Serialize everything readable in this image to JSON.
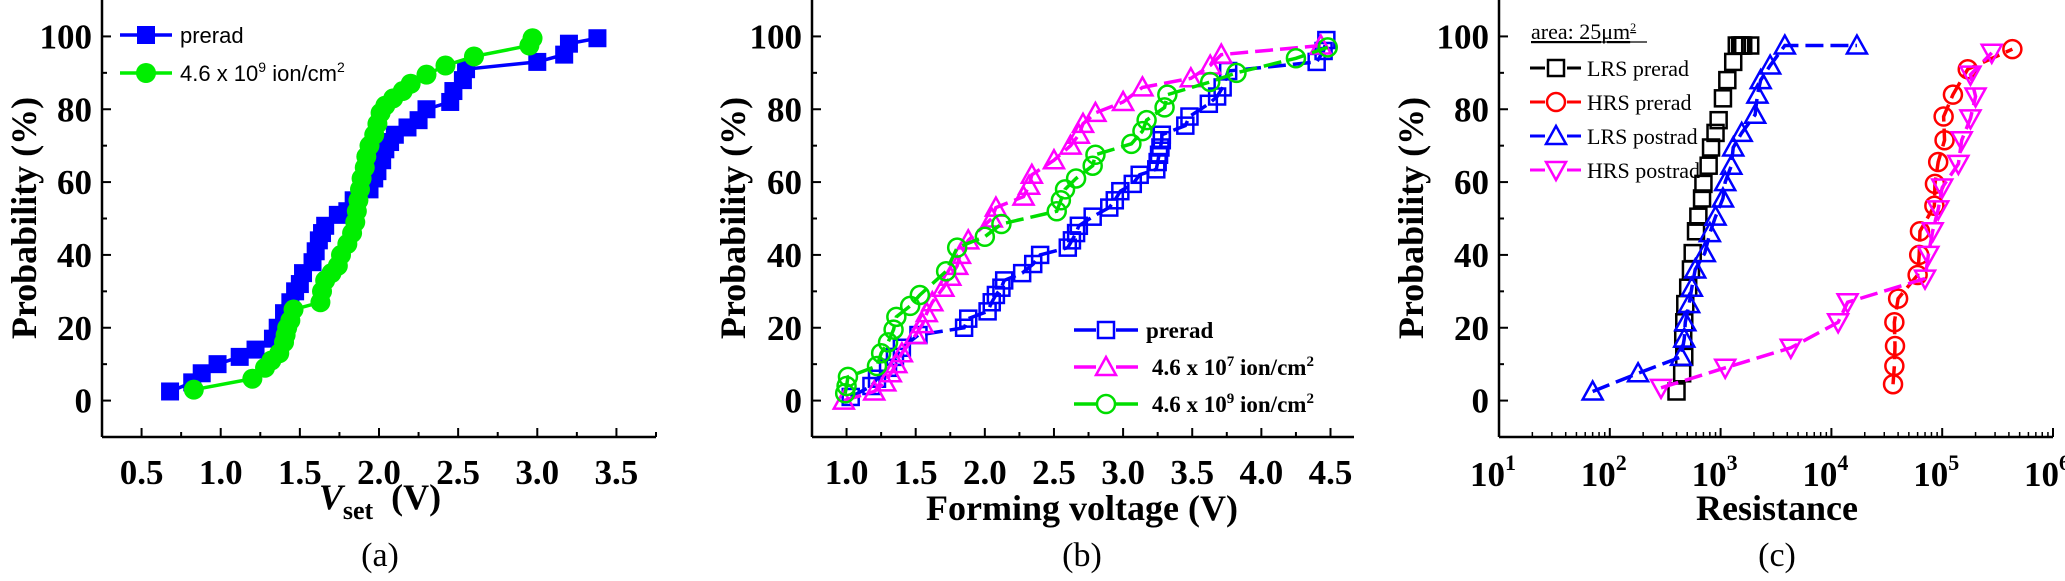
{
  "chart_data": [
    {
      "id": "a",
      "type": "line",
      "panel_label": "(a)",
      "title": "",
      "xlabel": "V_set (V)",
      "xlabel_main": "V",
      "xlabel_sub": "set",
      "xlabel_unit": "(V)",
      "ylabel": "Probability (%)",
      "xscale": "linear",
      "xlim": [
        0.25,
        3.75
      ],
      "ylim": [
        -10,
        110
      ],
      "xticks": [
        0.5,
        1.0,
        1.5,
        2.0,
        2.5,
        3.0,
        3.5
      ],
      "xtick_labels": [
        "0.5",
        "1.0",
        "1.5",
        "2.0",
        "2.5",
        "3.0",
        "3.5"
      ],
      "yticks": [
        0,
        20,
        40,
        60,
        80,
        100
      ],
      "ytick_labels": [
        "0",
        "20",
        "40",
        "60",
        "80",
        "100"
      ],
      "grid": false,
      "legend_position": "top-left",
      "series": [
        {
          "name": "prerad",
          "legend_text": "prerad",
          "legend_sup": "",
          "legend_tail": "",
          "color": "#0000ff",
          "marker": "filled-square",
          "x": [
            0.68,
            0.82,
            0.88,
            0.98,
            1.12,
            1.22,
            1.33,
            1.36,
            1.4,
            1.44,
            1.47,
            1.5,
            1.52,
            1.58,
            1.6,
            1.62,
            1.64,
            1.66,
            1.74,
            1.8,
            1.84,
            1.94,
            1.97,
            1.99,
            2.02,
            2.04,
            2.07,
            2.1,
            2.18,
            2.25,
            2.3,
            2.45,
            2.47,
            2.53,
            2.55,
            3.0,
            3.17,
            3.2,
            3.38
          ],
          "y": [
            2.5,
            5,
            7.5,
            10,
            12,
            14,
            17,
            20,
            24,
            27,
            30,
            32,
            35,
            38,
            41,
            44,
            46,
            48,
            51,
            52,
            55,
            58,
            61,
            63,
            66,
            69,
            71,
            73,
            75,
            77,
            80,
            82,
            85,
            88,
            91,
            93,
            95,
            98,
            99.5
          ]
        },
        {
          "name": "4.6 x 10^9 ion/cm^2",
          "legend_text": "4.6 x 10",
          "legend_sup": "9",
          "legend_tail": " ion/cm",
          "legend_sup2": "2",
          "color": "#00ee00",
          "marker": "filled-circle",
          "x": [
            0.83,
            1.2,
            1.28,
            1.32,
            1.37,
            1.4,
            1.41,
            1.42,
            1.44,
            1.46,
            1.63,
            1.64,
            1.66,
            1.7,
            1.74,
            1.76,
            1.8,
            1.83,
            1.85,
            1.86,
            1.87,
            1.88,
            1.89,
            1.91,
            1.92,
            1.94,
            1.97,
            1.99,
            2.01,
            2.04,
            2.09,
            2.15,
            2.2,
            2.3,
            2.42,
            2.6,
            2.95,
            2.97
          ],
          "y": [
            3,
            6,
            9,
            11,
            13,
            16,
            18,
            20,
            22,
            25,
            27,
            30,
            33,
            35,
            37,
            40,
            43,
            46,
            49,
            52,
            55,
            58,
            61,
            64,
            67,
            70,
            73,
            76,
            79,
            81,
            83,
            85,
            87,
            89.5,
            92,
            94.5,
            97.5,
            99.5
          ]
        }
      ]
    },
    {
      "id": "b",
      "type": "line",
      "panel_label": "(b)",
      "title": "",
      "xlabel": "Forming voltage (V)",
      "ylabel": "Probability (%)",
      "xscale": "linear",
      "xlim": [
        0.75,
        4.67
      ],
      "ylim": [
        -10,
        110
      ],
      "xticks": [
        1.0,
        1.5,
        2.0,
        2.5,
        3.0,
        3.5,
        4.0,
        4.5
      ],
      "xtick_labels": [
        "1.0",
        "1.5",
        "2.0",
        "2.5",
        "3.0",
        "3.5",
        "4.0",
        "4.5"
      ],
      "yticks": [
        0,
        20,
        40,
        60,
        80,
        100
      ],
      "ytick_labels": [
        "0",
        "20",
        "40",
        "60",
        "80",
        "100"
      ],
      "grid": false,
      "legend_position": "bottom-right",
      "series": [
        {
          "name": "prerad",
          "legend_text": "prerad",
          "legend_sup": "",
          "legend_tail": "",
          "color": "#0000ff",
          "marker": "open-square",
          "x": [
            1.03,
            1.18,
            1.22,
            1.3,
            1.35,
            1.4,
            1.52,
            1.85,
            1.88,
            2.02,
            2.05,
            2.08,
            2.12,
            2.14,
            2.27,
            2.35,
            2.4,
            2.6,
            2.63,
            2.66,
            2.68,
            2.78,
            2.9,
            2.94,
            2.98,
            3.07,
            3.12,
            3.24,
            3.25,
            3.26,
            3.27,
            3.28,
            3.28,
            3.45,
            3.48,
            3.62,
            3.68,
            3.72,
            3.76,
            4.4,
            4.45,
            4.47
          ],
          "y": [
            1,
            4,
            6,
            9,
            12,
            14.5,
            18,
            20,
            22.5,
            24.5,
            27,
            29,
            31,
            33,
            35,
            37.5,
            40,
            42,
            44,
            46,
            48,
            50.5,
            53,
            55,
            57.5,
            59.5,
            62,
            63.5,
            65.5,
            67.5,
            69.5,
            71.5,
            73,
            75.5,
            78,
            81.5,
            83.5,
            86,
            90.5,
            93,
            96,
            99
          ]
        },
        {
          "name": "4.6 x 10^7 ion/cm^2",
          "legend_text": "4.6 x 10",
          "legend_sup": "7",
          "legend_tail": " ion/cm",
          "legend_sup2": "2",
          "color": "#ff00ff",
          "marker": "open-triangle",
          "x": [
            0.98,
            1.2,
            1.28,
            1.32,
            1.36,
            1.4,
            1.5,
            1.55,
            1.58,
            1.62,
            1.7,
            1.75,
            1.8,
            1.82,
            1.88,
            2.05,
            2.08,
            2.28,
            2.32,
            2.34,
            2.5,
            2.62,
            2.68,
            2.71,
            2.8,
            3.0,
            3.14,
            3.49,
            3.63,
            3.71,
            4.43
          ],
          "y": [
            0,
            2.5,
            5,
            7.5,
            10,
            13,
            18,
            21,
            24,
            27,
            31,
            34,
            37,
            40,
            44,
            50,
            53,
            56,
            59,
            62,
            66,
            70,
            73,
            76,
            79,
            82,
            86,
            88.5,
            92,
            95,
            97.5
          ]
        },
        {
          "name": "4.6 x 10^9 ion/cm^2",
          "legend_text": "4.6 x 10",
          "legend_sup": "9",
          "legend_tail": " ion/cm",
          "legend_sup2": "2",
          "color": "#00dd00",
          "marker": "open-circle",
          "x": [
            0.99,
            1.0,
            1.01,
            1.22,
            1.25,
            1.3,
            1.34,
            1.36,
            1.46,
            1.53,
            1.72,
            1.8,
            2.0,
            2.12,
            2.52,
            2.55,
            2.58,
            2.66,
            2.78,
            2.8,
            3.06,
            3.14,
            3.17,
            3.3,
            3.32,
            3.63,
            3.82,
            4.25,
            4.48
          ],
          "y": [
            2,
            4,
            6.5,
            9.5,
            13,
            16,
            19.5,
            23,
            26,
            29,
            35.5,
            42,
            45,
            48.5,
            52,
            55,
            58,
            61,
            64.5,
            67.5,
            70.5,
            74,
            77,
            80.5,
            84,
            87.5,
            90,
            94,
            97
          ]
        }
      ]
    },
    {
      "id": "c",
      "type": "scatter",
      "panel_label": "(c)",
      "title": "",
      "xlabel": "Resistance",
      "ylabel": "Probability (%)",
      "xscale": "log10",
      "xlim_log10": [
        1,
        6
      ],
      "ylim": [
        -10,
        110
      ],
      "xticks_log10": [
        1,
        2,
        3,
        4,
        5,
        6
      ],
      "xtick_labels": [
        "10",
        "10",
        "10",
        "10",
        "10",
        "10"
      ],
      "xtick_exponents": [
        "1",
        "2",
        "3",
        "4",
        "5",
        "6"
      ],
      "yticks": [
        0,
        20,
        40,
        60,
        80,
        100
      ],
      "ytick_labels": [
        "0",
        "20",
        "40",
        "60",
        "80",
        "100"
      ],
      "grid": false,
      "legend_position": "top-left",
      "legend_header": "area: 25μm",
      "legend_header_sup": "2",
      "series": [
        {
          "name": "LRS prerad",
          "color": "#000000",
          "marker": "open-square",
          "connected": false,
          "x": [
            400,
            450,
            470,
            460,
            470,
            480,
            510,
            540,
            560,
            600,
            630,
            680,
            700,
            780,
            820,
            900,
            960,
            1050,
            1150,
            1300,
            1400,
            1500,
            1550,
            1600,
            1850
          ],
          "y": [
            2.5,
            7.5,
            12,
            17,
            21.5,
            26.5,
            31,
            36,
            40.5,
            46.5,
            50.5,
            55.5,
            59.5,
            64.5,
            69.5,
            73.5,
            77,
            83,
            88,
            93,
            97.5,
            97.5,
            97.5,
            97.5,
            97.5
          ]
        },
        {
          "name": "HRS prerad",
          "color": "#ff0000",
          "marker": "open-circle",
          "connected": true,
          "x": [
            36000,
            37000,
            37500,
            37000,
            40000,
            60000,
            62000,
            63000,
            85000,
            86000,
            92000,
            105000,
            103000,
            125000,
            170000,
            430000
          ],
          "y": [
            4.5,
            9.5,
            15,
            21.5,
            28,
            34.5,
            40,
            46.5,
            53.5,
            59.5,
            65.5,
            71.5,
            78,
            84,
            91,
            96.5
          ]
        },
        {
          "name": "LRS postrad",
          "color": "#0000ff",
          "marker": "open-triangle",
          "connected": true,
          "x": [
            70,
            180,
            440,
            470,
            480,
            520,
            550,
            590,
            720,
            800,
            900,
            1050,
            1100,
            1250,
            1300,
            1550,
            2050,
            2150,
            2300,
            2800,
            3800,
            17000
          ],
          "y": [
            2.5,
            7.5,
            12,
            17,
            21.5,
            26.5,
            31,
            36,
            40.5,
            46,
            50.5,
            55.5,
            60,
            64.5,
            69.5,
            73.5,
            78.5,
            84,
            88,
            92,
            97.5,
            97.5
          ]
        },
        {
          "name": "HRS postrad",
          "color": "#ff00ff",
          "marker": "open-triangle-down",
          "connected": true,
          "x": [
            290,
            1100,
            4300,
            11500,
            14000,
            70000,
            75000,
            82000,
            92000,
            100000,
            140000,
            150000,
            180000,
            200000,
            180000,
            280000
          ],
          "y": [
            3.5,
            9,
            14.5,
            21.5,
            27,
            33.5,
            40,
            46.5,
            52.5,
            58.5,
            65,
            71.5,
            77.5,
            83.5,
            89.5,
            95.5
          ]
        }
      ]
    }
  ]
}
